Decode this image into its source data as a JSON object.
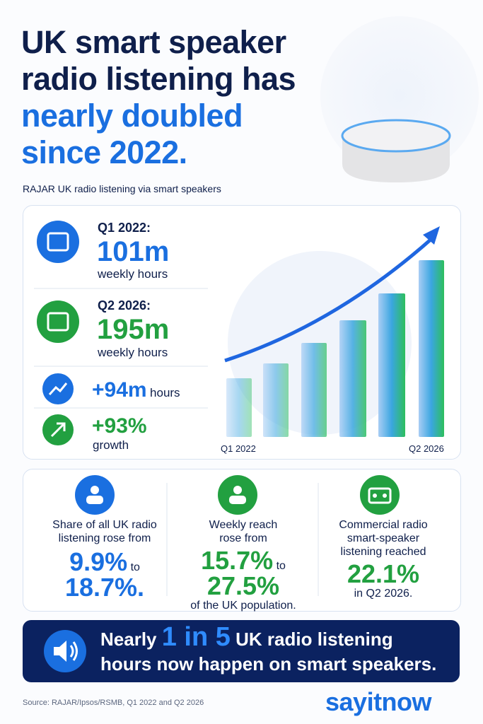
{
  "header": {
    "title_lines": [
      "UK smart speaker",
      "radio listening has"
    ],
    "title_highlight_lines": [
      "nearly doubled",
      "since 2022."
    ],
    "subtitle": "RAJAR UK radio listening via smart speakers"
  },
  "stats": [
    {
      "label": "Q1 2022:",
      "value": "101m",
      "unit": "weekly hours"
    },
    {
      "label": "Q2 2026:",
      "value": "195m",
      "unit": "weekly hours"
    }
  ],
  "change": {
    "value": "+94m",
    "unit": "hours"
  },
  "growth": {
    "value": "+93%",
    "unit": "growth"
  },
  "chart": {
    "x_labels": [
      "Q1 2022",
      "Q2 2026"
    ]
  },
  "cards": [
    {
      "text": "Share of all UK radio listening rose from",
      "from": "9.9%",
      "joiner": "to",
      "to": "18.7%."
    },
    {
      "text": "Weekly reach rose from",
      "from": "15.7%",
      "joiner": "to",
      "to": "27.5%",
      "after": "of the UK population."
    },
    {
      "text": "Commercial radio smart-speaker listening reached",
      "value": "22.1%",
      "after": "in Q2 2026."
    }
  ],
  "banner": {
    "before": "Nearly",
    "highlight": "1 in 5",
    "after": "UK radio listening hours now happen on smart speakers."
  },
  "footer": {
    "source": "Source: RAJAR/Ipsos/RSMB, Q1 2022 and Q2 2026",
    "brand": "sayitnow"
  }
}
